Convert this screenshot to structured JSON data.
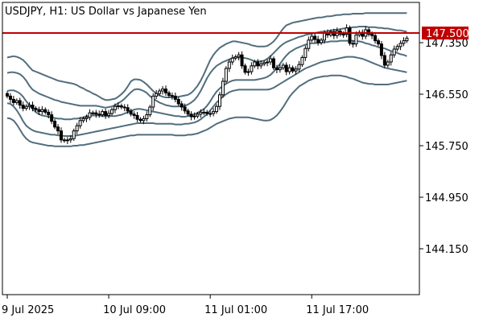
{
  "window": {
    "title": "USDJPY, H1:  US Dollar vs Japanese Yen"
  },
  "colors": {
    "background": "#ffffff",
    "frame": "#000000",
    "band": "#516e7d",
    "candle": "#000000",
    "price_line": "#c00000",
    "price_label_text": "#ffffff"
  },
  "chart_data": {
    "type": "candlestick",
    "title": "USDJPY, H1:  US Dollar vs Japanese Yen",
    "xlabel": "",
    "ylabel": "",
    "ylim": [
      143.4,
      148.0
    ],
    "y_ticks": [
      {
        "value": 147.35,
        "label": "147.350"
      },
      {
        "value": 146.55,
        "label": "146.550"
      },
      {
        "value": 145.75,
        "label": "145.750"
      },
      {
        "value": 144.95,
        "label": "144.950"
      },
      {
        "value": 144.15,
        "label": "144.150"
      }
    ],
    "x_ticks": [
      {
        "index": 0,
        "label": "9 Jul 2025"
      },
      {
        "index": 32,
        "label": "10 Jul 09:00"
      },
      {
        "index": 64,
        "label": "11 Jul 01:00"
      },
      {
        "index": 96,
        "label": "11 Jul 17:00"
      }
    ],
    "bar_count": 127,
    "grid": false,
    "horizontal_line": {
      "value": 147.5,
      "label": "147.500"
    },
    "close": [
      146.52,
      146.47,
      146.42,
      146.45,
      146.38,
      146.33,
      146.36,
      146.38,
      146.33,
      146.31,
      146.28,
      146.31,
      146.27,
      146.23,
      146.13,
      146.04,
      145.98,
      145.84,
      145.83,
      145.84,
      145.86,
      145.98,
      146.06,
      146.14,
      146.17,
      146.19,
      146.26,
      146.26,
      146.24,
      146.23,
      146.28,
      146.22,
      146.25,
      146.31,
      146.36,
      146.37,
      146.35,
      146.34,
      146.29,
      146.24,
      146.22,
      146.16,
      146.14,
      146.17,
      146.23,
      146.35,
      146.52,
      146.56,
      146.6,
      146.63,
      146.57,
      146.53,
      146.52,
      146.47,
      146.4,
      146.35,
      146.29,
      146.24,
      146.2,
      146.21,
      146.24,
      146.27,
      146.27,
      146.25,
      146.25,
      146.28,
      146.36,
      146.54,
      146.75,
      146.95,
      147.05,
      147.11,
      147.13,
      147.16,
      146.99,
      146.89,
      146.9,
      146.99,
      147.05,
      146.99,
      147.02,
      147.04,
      147.05,
      147.1,
      146.96,
      146.93,
      146.96,
      147.0,
      146.9,
      146.96,
      146.91,
      146.94,
      147.01,
      147.12,
      147.26,
      147.39,
      147.45,
      147.4,
      147.35,
      147.39,
      147.5,
      147.47,
      147.52,
      147.46,
      147.53,
      147.48,
      147.48,
      147.58,
      147.34,
      147.33,
      147.47,
      147.51,
      147.45,
      147.55,
      147.48,
      147.46,
      147.38,
      147.33,
      147.15,
      147.0,
      147.05,
      147.16,
      147.25,
      147.29,
      147.34,
      147.38,
      147.42
    ],
    "series": [
      {
        "name": "",
        "role": "outer_upper_band",
        "values": [
          147.12,
          147.13,
          147.14,
          147.13,
          147.11,
          147.08,
          147.03,
          146.97,
          146.92,
          146.9,
          146.88,
          146.86,
          146.84,
          146.82,
          146.8,
          146.78,
          146.76,
          146.75,
          146.74,
          146.73,
          146.72,
          146.71,
          146.69,
          146.66,
          146.64,
          146.61,
          146.59,
          146.56,
          146.54,
          146.51,
          146.48,
          146.46,
          146.46,
          146.47,
          146.48,
          146.51,
          146.55,
          146.6,
          146.67,
          146.75,
          146.78,
          146.78,
          146.77,
          146.74,
          146.7,
          146.65,
          146.6,
          146.56,
          146.53,
          146.51,
          146.5,
          146.5,
          146.5,
          146.5,
          146.51,
          146.52,
          146.53,
          146.54,
          146.57,
          146.62,
          146.68,
          146.76,
          146.86,
          146.97,
          147.08,
          147.16,
          147.22,
          147.27,
          147.3,
          147.33,
          147.35,
          147.37,
          147.37,
          147.36,
          147.35,
          147.34,
          147.33,
          147.31,
          147.3,
          147.29,
          147.29,
          147.29,
          147.3,
          147.33,
          147.37,
          147.43,
          147.5,
          147.57,
          147.62,
          147.64,
          147.66,
          147.67,
          147.68,
          147.69,
          147.7,
          147.71,
          147.72,
          147.73,
          147.74,
          147.74,
          147.75,
          147.76,
          147.76,
          147.77,
          147.78,
          147.78,
          147.79,
          147.79,
          147.79,
          147.8,
          147.8,
          147.8,
          147.8,
          147.81,
          147.81,
          147.81,
          147.81,
          147.81,
          147.81,
          147.81,
          147.81,
          147.81,
          147.81,
          147.81,
          147.81,
          147.81,
          147.81
        ]
      },
      {
        "name": "",
        "role": "inner_upper_band",
        "values": [
          146.88,
          146.89,
          146.89,
          146.88,
          146.86,
          146.82,
          146.76,
          146.68,
          146.62,
          146.59,
          146.56,
          146.54,
          146.52,
          146.5,
          146.48,
          146.46,
          146.45,
          146.43,
          146.42,
          146.41,
          146.4,
          146.39,
          146.38,
          146.37,
          146.37,
          146.37,
          146.37,
          146.37,
          146.37,
          146.36,
          146.35,
          146.34,
          146.35,
          146.36,
          146.38,
          146.41,
          146.44,
          146.48,
          146.53,
          146.58,
          146.62,
          146.63,
          146.62,
          146.6,
          146.57,
          146.52,
          146.48,
          146.45,
          146.42,
          146.4,
          146.38,
          146.37,
          146.36,
          146.36,
          146.36,
          146.37,
          146.37,
          146.39,
          146.42,
          146.46,
          146.52,
          146.6,
          146.7,
          146.8,
          146.88,
          146.94,
          146.99,
          147.02,
          147.05,
          147.07,
          147.09,
          147.11,
          147.12,
          147.12,
          147.12,
          147.11,
          147.1,
          147.08,
          147.06,
          147.06,
          147.06,
          147.07,
          147.1,
          147.14,
          147.19,
          147.24,
          147.29,
          147.33,
          147.36,
          147.38,
          147.4,
          147.42,
          147.44,
          147.45,
          147.47,
          147.48,
          147.49,
          147.5,
          147.51,
          147.52,
          147.52,
          147.53,
          147.54,
          147.55,
          147.55,
          147.56,
          147.57,
          147.57,
          147.58,
          147.59,
          147.59,
          147.6,
          147.6,
          147.6,
          147.59,
          147.59,
          147.59,
          147.58,
          147.58,
          147.57,
          147.57,
          147.56,
          147.55,
          147.54,
          147.54,
          147.53,
          147.52
        ]
      },
      {
        "name": "",
        "role": "middle_band",
        "values": [
          146.6,
          146.61,
          146.61,
          146.59,
          146.56,
          146.51,
          146.44,
          146.38,
          146.32,
          146.27,
          146.24,
          146.22,
          146.21,
          146.2,
          146.19,
          146.18,
          146.17,
          146.17,
          146.16,
          146.16,
          146.16,
          146.17,
          146.17,
          146.18,
          146.19,
          146.21,
          146.21,
          146.22,
          146.22,
          146.22,
          146.21,
          146.21,
          146.21,
          146.21,
          146.21,
          146.22,
          146.23,
          146.25,
          146.27,
          146.29,
          146.31,
          146.32,
          146.32,
          146.31,
          146.3,
          146.29,
          146.28,
          146.27,
          146.26,
          146.25,
          146.24,
          146.23,
          146.22,
          146.21,
          146.21,
          146.2,
          146.2,
          146.21,
          146.22,
          146.24,
          146.26,
          146.29,
          146.32,
          146.37,
          146.44,
          146.52,
          146.59,
          146.64,
          146.68,
          146.71,
          146.74,
          146.76,
          146.77,
          146.77,
          146.77,
          146.77,
          146.77,
          146.77,
          146.77,
          146.78,
          146.79,
          146.8,
          146.82,
          146.85,
          146.9,
          146.96,
          147.02,
          147.09,
          147.15,
          147.2,
          147.23,
          147.26,
          147.28,
          147.3,
          147.32,
          147.33,
          147.34,
          147.34,
          147.35,
          147.35,
          147.36,
          147.36,
          147.37,
          147.37,
          147.37,
          147.38,
          147.38,
          147.38,
          147.38,
          147.38,
          147.37,
          147.37,
          147.36,
          147.34,
          147.33,
          147.31,
          147.3,
          147.28,
          147.27,
          147.26,
          147.24,
          147.22,
          147.21,
          147.19,
          147.17,
          147.16,
          147.14
        ]
      },
      {
        "name": "",
        "role": "inner_lower_band",
        "values": [
          146.41,
          146.4,
          146.36,
          146.3,
          146.22,
          146.13,
          146.06,
          146.02,
          145.99,
          145.97,
          145.96,
          145.95,
          145.94,
          145.93,
          145.92,
          145.92,
          145.91,
          145.91,
          145.9,
          145.9,
          145.9,
          145.9,
          145.91,
          145.92,
          145.93,
          145.94,
          145.95,
          145.96,
          145.97,
          145.98,
          145.99,
          146.0,
          146.01,
          146.02,
          146.03,
          146.04,
          146.05,
          146.06,
          146.07,
          146.08,
          146.09,
          146.1,
          146.1,
          146.1,
          146.1,
          146.1,
          146.1,
          146.09,
          146.09,
          146.09,
          146.09,
          146.09,
          146.09,
          146.08,
          146.08,
          146.08,
          146.09,
          146.09,
          146.1,
          146.11,
          146.13,
          146.16,
          146.2,
          146.24,
          146.3,
          146.36,
          146.42,
          146.47,
          146.51,
          146.55,
          146.58,
          146.6,
          146.61,
          146.62,
          146.62,
          146.62,
          146.62,
          146.62,
          146.62,
          146.62,
          146.62,
          146.62,
          146.62,
          146.63,
          146.65,
          146.68,
          146.71,
          146.74,
          146.77,
          146.8,
          146.83,
          146.86,
          146.89,
          146.92,
          146.95,
          146.97,
          146.99,
          147.01,
          147.03,
          147.05,
          147.06,
          147.07,
          147.08,
          147.09,
          147.1,
          147.11,
          147.12,
          147.13,
          147.13,
          147.13,
          147.12,
          147.11,
          147.1,
          147.08,
          147.06,
          147.04,
          147.02,
          147.0,
          146.98,
          146.96,
          146.95,
          146.94,
          146.93,
          146.92,
          146.91,
          146.9,
          146.89
        ]
      },
      {
        "name": "",
        "role": "outer_lower_band",
        "values": [
          146.18,
          146.17,
          146.14,
          146.08,
          146.0,
          145.92,
          145.86,
          145.82,
          145.8,
          145.79,
          145.78,
          145.77,
          145.76,
          145.75,
          145.75,
          145.74,
          145.74,
          145.74,
          145.74,
          145.74,
          145.74,
          145.75,
          145.75,
          145.76,
          145.76,
          145.77,
          145.78,
          145.79,
          145.8,
          145.81,
          145.82,
          145.83,
          145.84,
          145.85,
          145.86,
          145.87,
          145.88,
          145.89,
          145.9,
          145.91,
          145.91,
          145.92,
          145.92,
          145.92,
          145.92,
          145.92,
          145.92,
          145.92,
          145.92,
          145.92,
          145.92,
          145.92,
          145.92,
          145.91,
          145.91,
          145.91,
          145.91,
          145.92,
          145.92,
          145.93,
          145.94,
          145.96,
          145.98,
          146.0,
          146.03,
          146.06,
          146.09,
          146.11,
          146.13,
          146.15,
          146.17,
          146.18,
          146.19,
          146.19,
          146.19,
          146.19,
          146.19,
          146.18,
          146.17,
          146.16,
          146.15,
          146.14,
          146.14,
          146.15,
          146.18,
          146.22,
          146.28,
          146.35,
          146.43,
          146.51,
          146.57,
          146.62,
          146.67,
          146.7,
          146.73,
          146.76,
          146.78,
          146.8,
          146.81,
          146.82,
          146.83,
          146.83,
          146.84,
          146.84,
          146.84,
          146.84,
          146.83,
          146.82,
          146.8,
          146.79,
          146.77,
          146.75,
          146.73,
          146.72,
          146.71,
          146.71,
          146.7,
          146.7,
          146.7,
          146.7,
          146.7,
          146.71,
          146.72,
          146.73,
          146.74,
          146.75,
          146.76
        ]
      }
    ]
  }
}
